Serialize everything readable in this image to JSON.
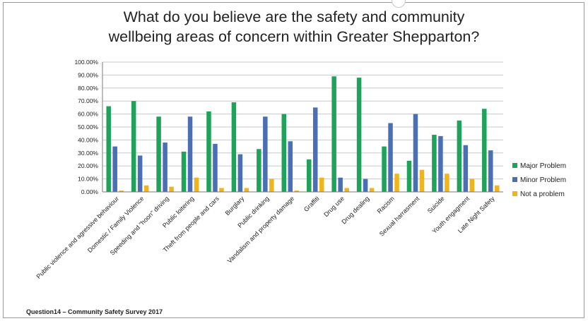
{
  "title_line1": "What do you believe are the safety and community",
  "title_line2": "wellbeing areas of concern within Greater Shepparton?",
  "footnote": "Question14 – Community Safety Survey 2017",
  "colors": {
    "major": "#1fa35a",
    "minor": "#4a6fb5",
    "not": "#f0b41c",
    "grid": "#c9c9c9",
    "axis": "#7a7a7a",
    "text": "#222222"
  },
  "chart_data": {
    "type": "bar",
    "title": "What do you believe are the safety and community wellbeing areas of concern within Greater Shepparton?",
    "categories": [
      "Public violence and agressive behaviour",
      "Domestic / Family Violence",
      "Speeding and \"hoon\" driving",
      "Public loitering",
      "Theft from people and cars",
      "Burglary",
      "Public drinking",
      "Vandalism and property damage",
      "Graffiti",
      "Drug use",
      "Drug dealing",
      "Racism",
      "Sexual harrasment",
      "Suicide",
      "Youth engagment",
      "Late Night Safety"
    ],
    "series": [
      {
        "name": "Major Problem",
        "values": [
          66,
          70,
          58,
          31,
          62,
          69,
          33,
          60,
          25,
          89,
          88,
          35,
          24,
          44,
          55,
          64
        ]
      },
      {
        "name": "Minor Problem",
        "values": [
          35,
          28,
          38,
          58,
          37,
          29,
          58,
          39,
          65,
          11,
          10,
          53,
          60,
          43,
          36,
          32
        ]
      },
      {
        "name": "Not a problem",
        "values": [
          1,
          5,
          4,
          11,
          3,
          3,
          10,
          1,
          11,
          3,
          3,
          14,
          17,
          14,
          10,
          5
        ]
      }
    ],
    "ylim": [
      0,
      100
    ],
    "yticks": [
      "0.00%",
      "10.00%",
      "20.00%",
      "30.00%",
      "40.00%",
      "50.00%",
      "60.00%",
      "70.00%",
      "80.00%",
      "90.00%",
      "100.00%"
    ],
    "grid": true,
    "legend_position": "right"
  }
}
